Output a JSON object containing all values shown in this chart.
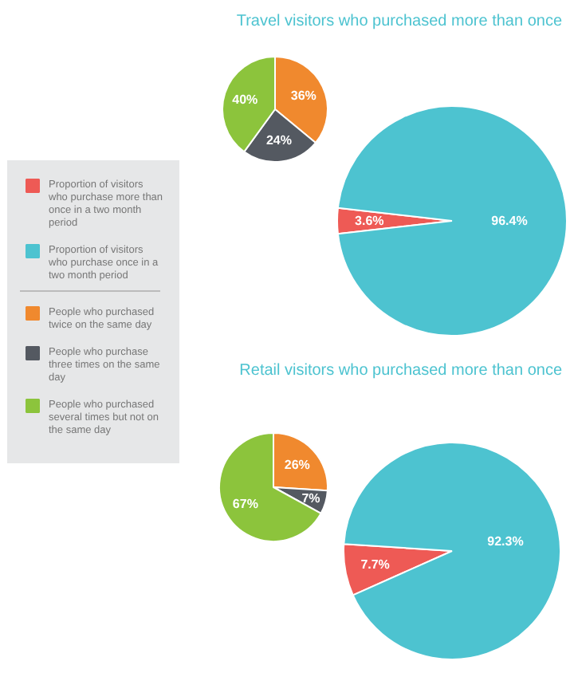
{
  "chart_data": [
    {
      "type": "pie",
      "categories": [
        "People who purchased twice on the same day",
        "People who purchase three times on the same day",
        "People who purchased several times but not on the same day"
      ],
      "values": [
        36,
        24,
        40
      ],
      "colors": [
        "#f0892e",
        "#545961",
        "#8cc43c"
      ],
      "value_labels": [
        "36%",
        "24%",
        "40%"
      ],
      "legend": "left"
    },
    {
      "type": "pie",
      "title": "Travel visitors who purchased more than once",
      "categories": [
        "Proportion of visitors who purchase more than once in a two month period",
        "Proportion of visitors who purchase once in a two month period"
      ],
      "values": [
        3.6,
        96.4
      ],
      "colors": [
        "#ee5a55",
        "#4dc3d0"
      ],
      "value_labels": [
        "3.6%",
        "96.4%"
      ],
      "legend": "left"
    },
    {
      "type": "pie",
      "categories": [
        null,
        null,
        null
      ],
      "values": [
        26,
        7,
        67
      ],
      "colors": [
        "#f0892e",
        "#545961",
        "#8cc43c"
      ],
      "value_labels": [
        "26%",
        "7%",
        "67%"
      ]
    },
    {
      "type": "pie",
      "title": "Retail visitors who purchased more than once",
      "categories": [
        null,
        null
      ],
      "values": [
        7.7,
        92.3
      ],
      "colors": [
        "#ee5a55",
        "#4dc3d0"
      ],
      "value_labels": [
        "7.7%",
        "92.3%"
      ]
    }
  ]
}
